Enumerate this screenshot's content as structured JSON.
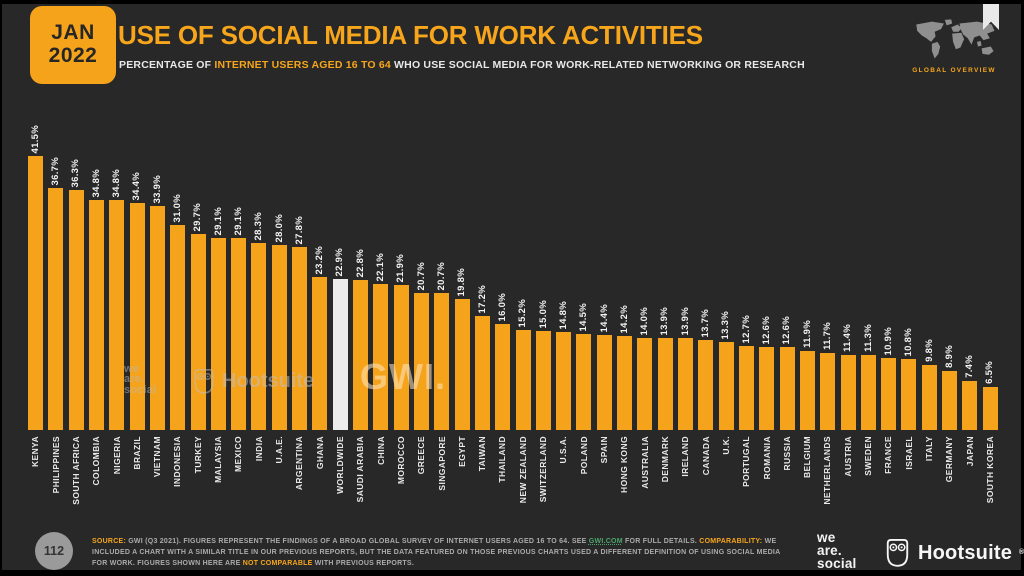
{
  "header": {
    "badge_month": "JAN",
    "badge_year": "2022",
    "title": "USE OF SOCIAL MEDIA FOR WORK ACTIVITIES",
    "subtitle_prefix": "PERCENTAGE OF ",
    "subtitle_highlight": "INTERNET USERS AGED 16 TO 64",
    "subtitle_suffix": " WHO USE SOCIAL MEDIA FOR WORK-RELATED NETWORKING OR RESEARCH",
    "section_label": "GLOBAL OVERVIEW"
  },
  "chart_data": {
    "type": "bar",
    "title": "USE OF SOCIAL MEDIA FOR WORK ACTIVITIES",
    "unit": "%",
    "ylim": [
      0,
      45
    ],
    "grid": false,
    "bar_color": "#F5A31B",
    "highlight_color": "#ECECEC",
    "highlight_category": "WORLDWIDE",
    "categories": [
      "KENYA",
      "PHILIPPINES",
      "SOUTH AFRICA",
      "COLOMBIA",
      "NIGERIA",
      "BRAZIL",
      "VIETNAM",
      "INDONESIA",
      "TURKEY",
      "MALAYSIA",
      "MEXICO",
      "INDIA",
      "U.A.E.",
      "ARGENTINA",
      "GHANA",
      "WORLDWIDE",
      "SAUDI ARABIA",
      "CHINA",
      "MOROCCO",
      "GREECE",
      "SINGAPORE",
      "EGYPT",
      "TAIWAN",
      "THAILAND",
      "NEW ZEALAND",
      "SWITZERLAND",
      "U.S.A.",
      "POLAND",
      "SPAIN",
      "HONG KONG",
      "AUSTRALIA",
      "DENMARK",
      "IRELAND",
      "CANADA",
      "U.K.",
      "PORTUGAL",
      "ROMANIA",
      "RUSSIA",
      "BELGIUM",
      "NETHERLANDS",
      "AUSTRIA",
      "SWEDEN",
      "FRANCE",
      "ISRAEL",
      "ITALY",
      "GERMANY",
      "JAPAN",
      "SOUTH KOREA"
    ],
    "values": [
      41.5,
      36.7,
      36.3,
      34.8,
      34.8,
      34.4,
      33.9,
      31.0,
      29.7,
      29.1,
      29.1,
      28.3,
      28.0,
      27.8,
      23.2,
      22.9,
      22.8,
      22.1,
      21.9,
      20.7,
      20.7,
      19.8,
      17.2,
      16.0,
      15.2,
      15.0,
      14.8,
      14.5,
      14.4,
      14.2,
      14.0,
      13.9,
      13.9,
      13.7,
      13.3,
      12.7,
      12.6,
      12.6,
      11.9,
      11.7,
      11.4,
      11.3,
      10.9,
      10.8,
      9.8,
      8.9,
      7.4,
      6.5
    ]
  },
  "watermarks": {
    "agency_lines": [
      "we",
      "are.",
      "social"
    ],
    "platform": "Hootsuite",
    "research": "GWI."
  },
  "footer": {
    "page_number": "112",
    "note_segments": [
      {
        "text": "SOURCE:",
        "style": "label"
      },
      {
        "text": " GWI (Q3 2021). FIGURES REPRESENT THE FINDINGS OF A BROAD GLOBAL SURVEY OF INTERNET USERS AGED 16 TO 64. SEE ",
        "style": "plain"
      },
      {
        "text": "GWI.COM",
        "style": "link"
      },
      {
        "text": " FOR FULL DETAILS. ",
        "style": "plain"
      },
      {
        "text": "COMPARABILITY:",
        "style": "label"
      },
      {
        "text": " WE INCLUDED A CHART WITH A SIMILAR TITLE IN OUR PREVIOUS REPORTS, BUT THE DATA FEATURED ON THOSE PREVIOUS CHARTS USED A DIFFERENT DEFINITION OF USING SOCIAL MEDIA FOR WORK. FIGURES SHOWN HERE ARE ",
        "style": "plain"
      },
      {
        "text": "NOT COMPARABLE",
        "style": "highlight"
      },
      {
        "text": " WITH PREVIOUS REPORTS.",
        "style": "plain"
      }
    ],
    "logos": {
      "agency_lines": [
        "we",
        "are.",
        "social"
      ],
      "platform": "Hootsuite",
      "reg_mark": "®"
    }
  }
}
